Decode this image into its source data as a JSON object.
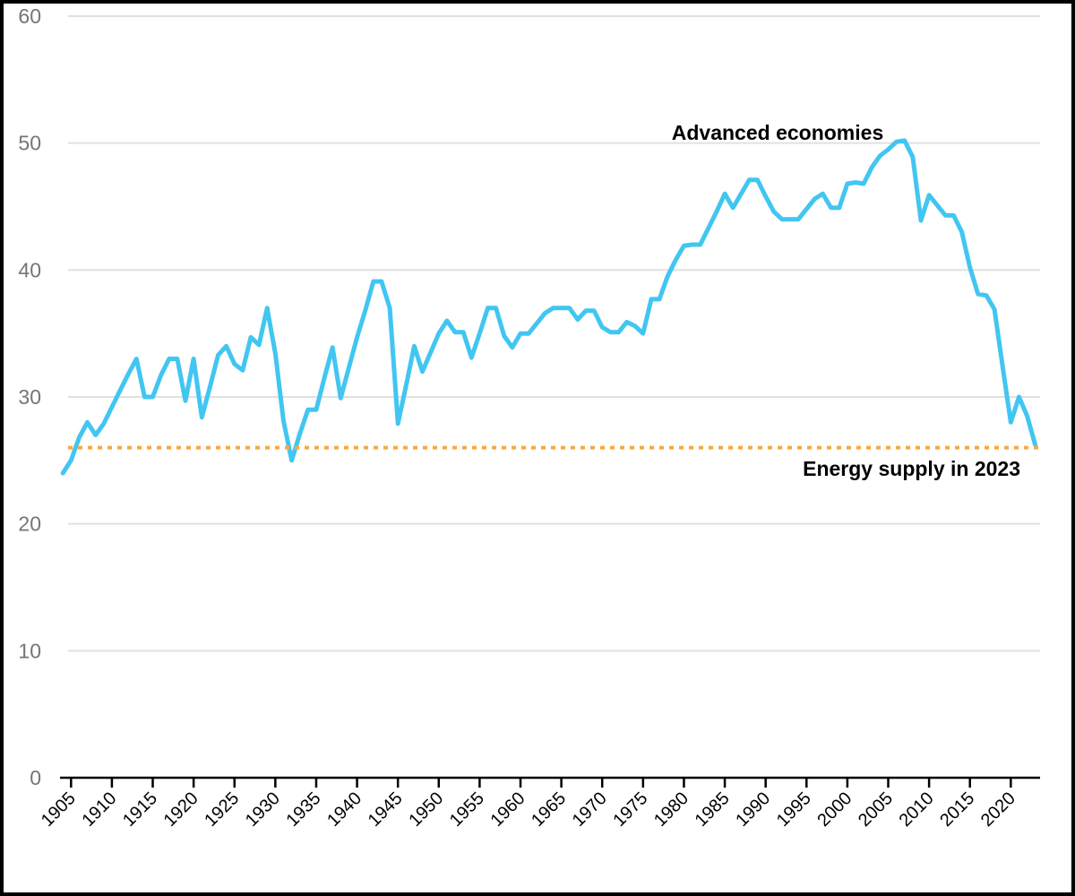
{
  "chart_data": {
    "type": "line",
    "title": "",
    "xlabel": "",
    "ylabel": "",
    "ylim": [
      0,
      60
    ],
    "xlim": [
      1903.5,
      2024
    ],
    "grid": "horizontal",
    "yticks": [
      0,
      10,
      20,
      30,
      40,
      50,
      60
    ],
    "xticks": [
      1905,
      1910,
      1915,
      1920,
      1925,
      1930,
      1935,
      1940,
      1945,
      1950,
      1955,
      1960,
      1965,
      1970,
      1975,
      1980,
      1985,
      1990,
      1995,
      2000,
      2005,
      2010,
      2015,
      2020
    ],
    "series": [
      {
        "name": "Advanced economies",
        "points": [
          [
            1904,
            24.0
          ],
          [
            1905,
            25.0
          ],
          [
            1906,
            26.8
          ],
          [
            1907,
            28.0
          ],
          [
            1908,
            27.0
          ],
          [
            1909,
            27.9
          ],
          [
            1910,
            29.2
          ],
          [
            1911,
            30.5
          ],
          [
            1912,
            31.8
          ],
          [
            1913,
            33.0
          ],
          [
            1914,
            30.0
          ],
          [
            1915,
            30.0
          ],
          [
            1916,
            31.7
          ],
          [
            1917,
            33.0
          ],
          [
            1918,
            33.0
          ],
          [
            1919,
            29.7
          ],
          [
            1920,
            33.0
          ],
          [
            1921,
            28.4
          ],
          [
            1922,
            30.8
          ],
          [
            1923,
            33.3
          ],
          [
            1924,
            34.0
          ],
          [
            1925,
            32.6
          ],
          [
            1926,
            32.1
          ],
          [
            1927,
            34.7
          ],
          [
            1928,
            34.1
          ],
          [
            1929,
            37.0
          ],
          [
            1930,
            33.4
          ],
          [
            1931,
            28.1
          ],
          [
            1932,
            25.0
          ],
          [
            1933,
            27.1
          ],
          [
            1934,
            29.0
          ],
          [
            1935,
            29.0
          ],
          [
            1936,
            31.5
          ],
          [
            1937,
            33.9
          ],
          [
            1938,
            29.9
          ],
          [
            1939,
            32.3
          ],
          [
            1940,
            34.7
          ],
          [
            1941,
            36.8
          ],
          [
            1942,
            39.1
          ],
          [
            1943,
            39.1
          ],
          [
            1944,
            37.0
          ],
          [
            1945,
            27.9
          ],
          [
            1946,
            30.9
          ],
          [
            1947,
            34.0
          ],
          [
            1948,
            32.0
          ],
          [
            1949,
            33.5
          ],
          [
            1950,
            35.0
          ],
          [
            1951,
            36.0
          ],
          [
            1952,
            35.1
          ],
          [
            1953,
            35.1
          ],
          [
            1954,
            33.1
          ],
          [
            1955,
            35.0
          ],
          [
            1956,
            37.0
          ],
          [
            1957,
            37.0
          ],
          [
            1958,
            34.8
          ],
          [
            1959,
            33.9
          ],
          [
            1960,
            35.0
          ],
          [
            1961,
            35.0
          ],
          [
            1962,
            35.8
          ],
          [
            1963,
            36.6
          ],
          [
            1964,
            37.0
          ],
          [
            1965,
            37.0
          ],
          [
            1966,
            37.0
          ],
          [
            1967,
            36.1
          ],
          [
            1968,
            36.8
          ],
          [
            1969,
            36.8
          ],
          [
            1970,
            35.5
          ],
          [
            1971,
            35.1
          ],
          [
            1972,
            35.1
          ],
          [
            1973,
            35.9
          ],
          [
            1974,
            35.6
          ],
          [
            1975,
            35.0
          ],
          [
            1976,
            37.7
          ],
          [
            1977,
            37.7
          ],
          [
            1978,
            39.5
          ],
          [
            1979,
            40.8
          ],
          [
            1980,
            41.9
          ],
          [
            1981,
            42.0
          ],
          [
            1982,
            42.0
          ],
          [
            1983,
            43.3
          ],
          [
            1984,
            44.6
          ],
          [
            1985,
            46.0
          ],
          [
            1986,
            44.9
          ],
          [
            1987,
            46.0
          ],
          [
            1988,
            47.1
          ],
          [
            1989,
            47.1
          ],
          [
            1990,
            45.8
          ],
          [
            1991,
            44.6
          ],
          [
            1992,
            44.0
          ],
          [
            1993,
            44.0
          ],
          [
            1994,
            44.0
          ],
          [
            1995,
            44.8
          ],
          [
            1996,
            45.6
          ],
          [
            1997,
            46.0
          ],
          [
            1998,
            44.9
          ],
          [
            1999,
            44.9
          ],
          [
            2000,
            46.8
          ],
          [
            2001,
            46.9
          ],
          [
            2002,
            46.8
          ],
          [
            2003,
            48.1
          ],
          [
            2004,
            49.0
          ],
          [
            2005,
            49.5
          ],
          [
            2006,
            50.1
          ],
          [
            2007,
            50.2
          ],
          [
            2008,
            48.9
          ],
          [
            2009,
            43.9
          ],
          [
            2010,
            45.9
          ],
          [
            2011,
            45.1
          ],
          [
            2012,
            44.3
          ],
          [
            2013,
            44.3
          ],
          [
            2014,
            43.0
          ],
          [
            2015,
            40.2
          ],
          [
            2016,
            38.1
          ],
          [
            2017,
            38.0
          ],
          [
            2018,
            36.9
          ],
          [
            2019,
            32.4
          ],
          [
            2020,
            28.0
          ],
          [
            2021,
            30.0
          ],
          [
            2022,
            28.5
          ],
          [
            2023,
            26.2
          ]
        ]
      }
    ],
    "reference_line": {
      "label": "Energy supply in 2023",
      "value": 26.0
    },
    "annotations": {
      "series_label": "Advanced economies",
      "refline_label": "Energy supply in 2023"
    },
    "colors": {
      "series": "#41C6F1",
      "reference": "#FAA83E",
      "gridline": "#E0E0E0",
      "y_tick_text": "#757575",
      "x_tick_text": "#000000",
      "axis": "#000000"
    },
    "legend": "none"
  }
}
